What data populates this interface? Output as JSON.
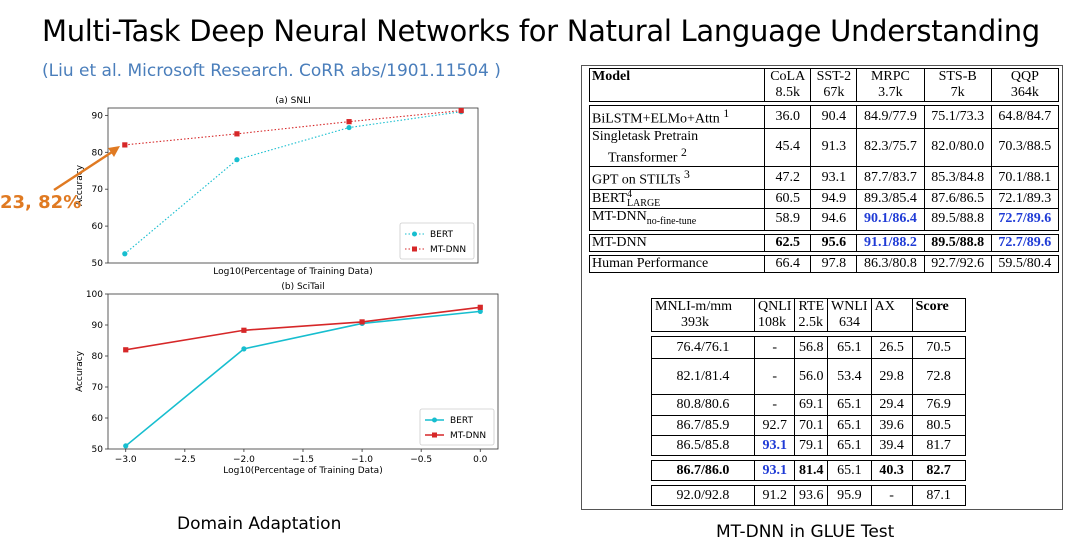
{
  "slide": {
    "title": "Multi-Task Deep Neural Networks for Natural Language Understanding",
    "citation": "(Liu et al. Microsoft Research. CoRR abs/1901.11504 )",
    "annotation": "23, 82%",
    "left_caption": "Domain Adaptation",
    "right_caption": "MT-DNN in GLUE Test"
  },
  "chart_data": [
    {
      "type": "line",
      "title": "(a) SNLI",
      "xlabel": "Log10(Percentage of Training Data)",
      "ylabel": "Accuracy",
      "x": [
        -3.0,
        -2.0,
        -1.0,
        0.0
      ],
      "ylim": [
        50,
        92
      ],
      "yticks": [
        "50",
        "60",
        "70",
        "80",
        "90"
      ],
      "series": [
        {
          "name": "BERT",
          "values": [
            52.5,
            78,
            86.7,
            91
          ],
          "color": "#17becf",
          "style": "dotted"
        },
        {
          "name": "MT-DNN",
          "values": [
            82,
            85,
            88.3,
            91.3
          ],
          "color": "#d62728",
          "style": "dotted"
        }
      ],
      "legend": "bottom-right"
    },
    {
      "type": "line",
      "title": "(b) SciTail",
      "xlabel": "Log10(Percentage of Training Data)",
      "ylabel": "Accuracy",
      "x": [
        -3.0,
        -2.0,
        -1.0,
        0.0
      ],
      "ylim": [
        50,
        100
      ],
      "yticks": [
        "50",
        "60",
        "70",
        "80",
        "90",
        "100"
      ],
      "xticks": [
        "−3.0",
        "−2.5",
        "−2.0",
        "−1.5",
        "−1.0",
        "−0.5",
        "0.0"
      ],
      "series": [
        {
          "name": "BERT",
          "values": [
            51,
            82.3,
            90.5,
            94.4
          ],
          "color": "#17becf",
          "style": "solid"
        },
        {
          "name": "MT-DNN",
          "values": [
            82,
            88.3,
            91,
            95.7
          ],
          "color": "#d62728",
          "style": "solid"
        }
      ],
      "legend": "bottom-right"
    }
  ],
  "glue_top": {
    "headers": [
      {
        "a": "Model",
        "b": ""
      },
      {
        "a": "CoLA",
        "b": "8.5k"
      },
      {
        "a": "SST-2",
        "b": "67k"
      },
      {
        "a": "MRPC",
        "b": "3.7k"
      },
      {
        "a": "STS-B",
        "b": "7k"
      },
      {
        "a": "QQP",
        "b": "364k"
      }
    ],
    "rows": [
      {
        "model": "BiLSTM+ELMo+Attn",
        "sup": "1",
        "sub": "",
        "cells": [
          "36.0",
          "90.4",
          "84.9/77.9",
          "75.1/73.3",
          "64.8/84.7"
        ]
      },
      {
        "model": "Singletask Pretrain",
        "model2": "Transformer",
        "sup": "2",
        "sub": "",
        "cells": [
          "45.4",
          "91.3",
          "82.3/75.7",
          "82.0/80.0",
          "70.3/88.5"
        ]
      },
      {
        "model": "GPT on STILTs",
        "sup": "3",
        "sub": "",
        "cells": [
          "47.2",
          "93.1",
          "87.7/83.7",
          "85.3/84.8",
          "70.1/88.1"
        ]
      },
      {
        "model": "BERT",
        "sup": "4",
        "sub": "LARGE",
        "cells": [
          "60.5",
          "94.9",
          "89.3/85.4",
          "87.6/86.5",
          "72.1/89.3"
        ]
      },
      {
        "model": "MT-DNN",
        "sup": "",
        "sub": "no-fine-tune",
        "cells": [
          "58.9",
          "94.6",
          "90.1/86.4",
          "89.5/88.8",
          "72.7/89.6"
        ]
      },
      {
        "model": "MT-DNN",
        "sup": "",
        "sub": "",
        "cells": [
          "62.5",
          "95.6",
          "91.1/88.2",
          "89.5/88.8",
          "72.7/89.6"
        ]
      },
      {
        "model": "Human Performance",
        "sup": "",
        "sub": "",
        "cells": [
          "66.4",
          "97.8",
          "86.3/80.8",
          "92.7/92.6",
          "59.5/80.4"
        ]
      }
    ]
  },
  "glue_bottom": {
    "headers": [
      {
        "a": "MNLI-m/mm",
        "b": "393k"
      },
      {
        "a": "QNLI",
        "b": "108k"
      },
      {
        "a": "RTE",
        "b": "2.5k"
      },
      {
        "a": "WNLI",
        "b": "634"
      },
      {
        "a": "AX",
        "b": ""
      },
      {
        "a": "Score",
        "b": ""
      }
    ],
    "rows": [
      [
        "76.4/76.1",
        "-",
        "56.8",
        "65.1",
        "26.5",
        "70.5"
      ],
      [
        "82.1/81.4",
        "-",
        "56.0",
        "53.4",
        "29.8",
        "72.8"
      ],
      [
        "80.8/80.6",
        "-",
        "69.1",
        "65.1",
        "29.4",
        "76.9"
      ],
      [
        "86.7/85.9",
        "92.7",
        "70.1",
        "65.1",
        "39.6",
        "80.5"
      ],
      [
        "86.5/85.8",
        "93.1",
        "79.1",
        "65.1",
        "39.4",
        "81.7"
      ],
      [
        "86.7/86.0",
        "93.1",
        "81.4",
        "65.1",
        "40.3",
        "82.7"
      ],
      [
        "92.0/92.8",
        "91.2",
        "93.6",
        "95.9",
        "-",
        "87.1"
      ]
    ]
  }
}
